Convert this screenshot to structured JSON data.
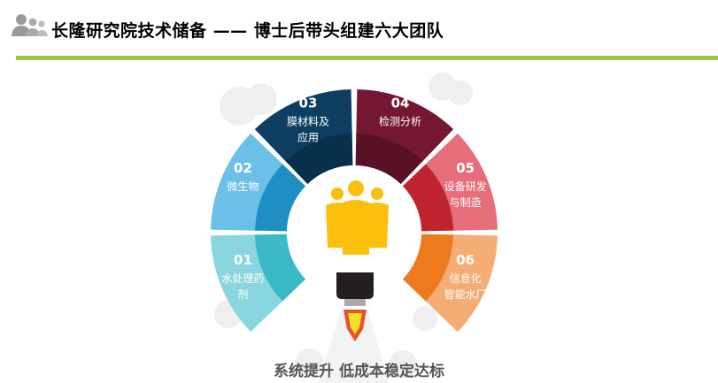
{
  "header": {
    "title": "长隆研究院技术储备 —— 博士后带头组建六大团队",
    "icon": "users-icon"
  },
  "colors": {
    "accent_rule": "#9cc64a"
  },
  "segments": [
    {
      "num": "01",
      "line1": "水处理药",
      "line2": "剂",
      "outer": "#8ad6df",
      "inner": "#3bb9c6"
    },
    {
      "num": "02",
      "line1": "微生物",
      "line2": "",
      "outer": "#6cc0e8",
      "inner": "#1e8fc4"
    },
    {
      "num": "03",
      "line1": "膜材料及",
      "line2": "应用",
      "outer": "#0e3f62",
      "inner": "#082f4b"
    },
    {
      "num": "04",
      "line1": "检测分析",
      "line2": "",
      "outer": "#731830",
      "inner": "#5a1025"
    },
    {
      "num": "05",
      "line1": "设备研发",
      "line2": "与制造",
      "outer": "#e56e7a",
      "inner": "#c0242f"
    },
    {
      "num": "06",
      "line1": "信息化",
      "line2": "智能水厂",
      "outer": "#f4ad75",
      "inner": "#ee7a1e"
    }
  ],
  "center": {
    "icon": "team-people-icon",
    "rocket": "rocket-flame-icon"
  },
  "caption": "系统提升 低成本稳定达标"
}
